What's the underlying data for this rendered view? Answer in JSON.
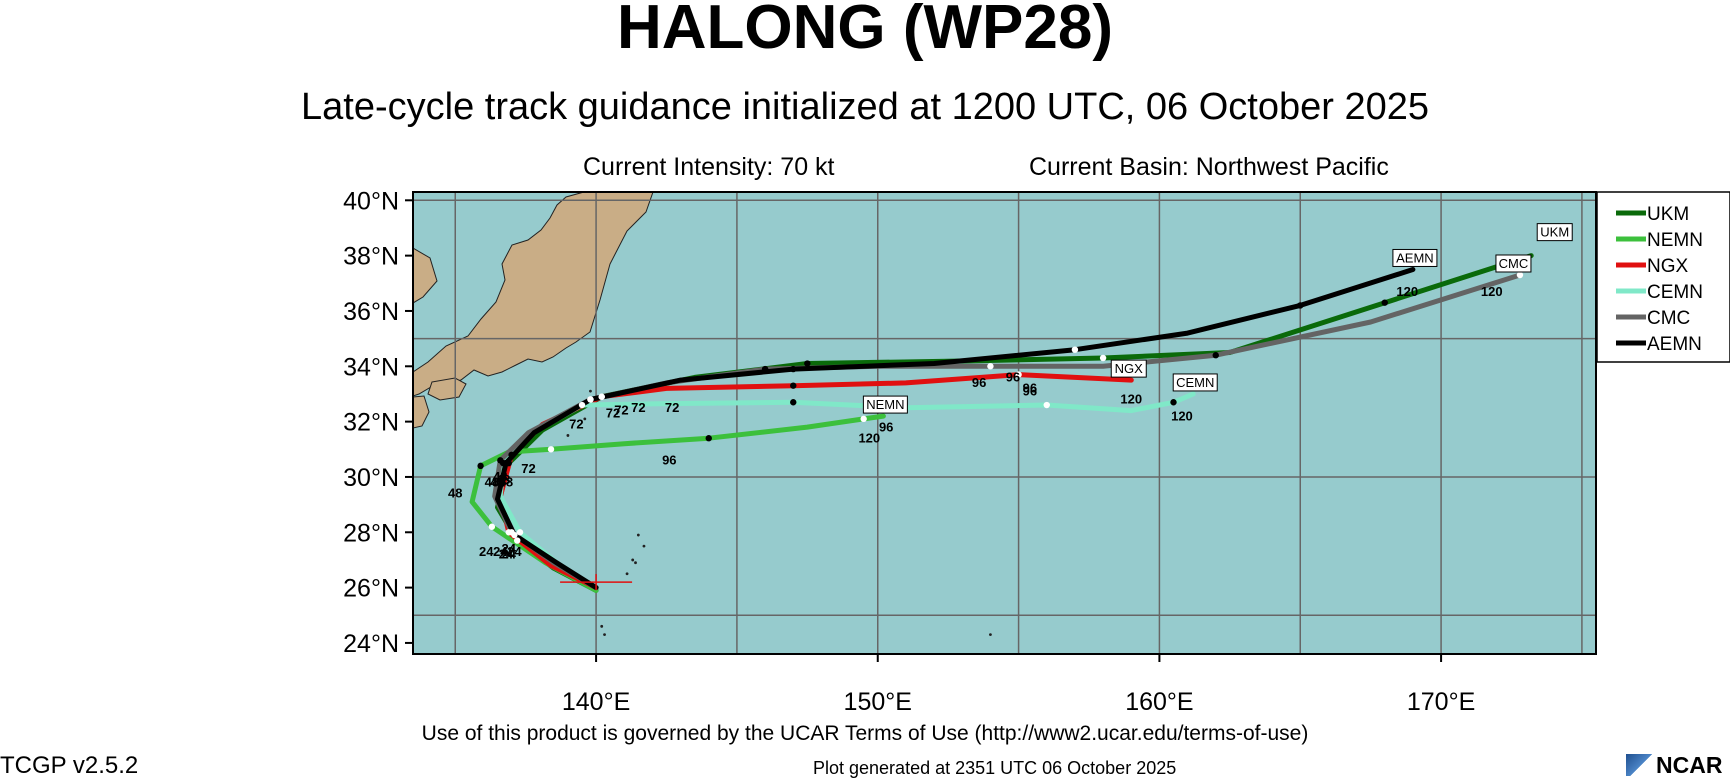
{
  "header": {
    "title": "HALONG (WP28)",
    "subtitle": "Late-cycle track guidance initialized at 1200 UTC, 06 October 2025",
    "intensity": "Current Intensity: 70 kt",
    "basin": "Current Basin: Northwest Pacific"
  },
  "footer": {
    "terms": "Use of this product is governed by the UCAR Terms of Use (http://www2.ucar.edu/terms-of-use)",
    "generated": "Plot generated at 2351 UTC   06 October 2025",
    "version": "TCGP v2.5.2",
    "logo_text": "NCAR"
  },
  "map": {
    "lon_range": [
      133.5,
      175.5
    ],
    "lat_range": [
      23.6,
      40.3
    ],
    "lon_ticks": [
      140,
      150,
      160,
      170
    ],
    "lon_tick_labels": [
      "140°E",
      "150°E",
      "160°E",
      "170°E"
    ],
    "lat_ticks": [
      24,
      26,
      28,
      30,
      32,
      34,
      36,
      38,
      40
    ],
    "lat_tick_labels": [
      "24°N",
      "26°N",
      "28°N",
      "30°N",
      "32°N",
      "34°N",
      "36°N",
      "38°N",
      "40°N"
    ],
    "grid_lons": [
      135,
      140,
      145,
      150,
      155,
      160,
      165,
      170,
      175
    ],
    "grid_lats": [
      25,
      30,
      35,
      40
    ],
    "ocean_color": "#96cbcd",
    "land_color": "#c9ad86",
    "current_position": {
      "lon": 140.0,
      "lat": 26.2
    }
  },
  "chart_data": {
    "type": "line",
    "legend_position": "right",
    "series": [
      {
        "name": "UKM",
        "color": "#0a6a0a",
        "points": [
          [
            140.0,
            25.9
          ],
          [
            138.5,
            26.7
          ],
          [
            137.2,
            27.7
          ],
          [
            136.5,
            28.9
          ],
          [
            136.9,
            30.5
          ],
          [
            138.1,
            31.7
          ],
          [
            140.2,
            32.9
          ],
          [
            143.5,
            33.6
          ],
          [
            147.5,
            34.1
          ],
          [
            153.5,
            34.2
          ],
          [
            158,
            34.3
          ],
          [
            162.5,
            34.5
          ],
          [
            168,
            36.3
          ],
          [
            173.2,
            38.0
          ]
        ],
        "end_label": "UKM",
        "hour_labels": [
          [
            "24",
            [
              137.1,
              27.8
            ]
          ],
          [
            "48",
            [
              136.8,
              30.3
            ]
          ],
          [
            "72",
            [
              141.5,
              33.0
            ]
          ],
          [
            "96",
            [
              154.8,
              34.1
            ]
          ],
          [
            "120",
            [
              172.8,
              38.1
            ]
          ]
        ]
      },
      {
        "name": "NEMN",
        "color": "#3cc03c",
        "points": [
          [
            140.0,
            25.9
          ],
          [
            138.2,
            26.9
          ],
          [
            136.3,
            28.2
          ],
          [
            135.6,
            29.1
          ],
          [
            135.9,
            30.4
          ],
          [
            136.9,
            30.9
          ],
          [
            138.4,
            31.0
          ],
          [
            141,
            31.2
          ],
          [
            144,
            31.4
          ],
          [
            147.5,
            31.8
          ],
          [
            149.5,
            32.1
          ],
          [
            150.2,
            32.2
          ]
        ],
        "end_label": "NEMN",
        "hour_labels": [
          [
            "24",
            [
              136.1,
              27.8
            ]
          ],
          [
            "48",
            [
              135.0,
              29.9
            ]
          ],
          [
            "72",
            [
              137.6,
              30.8
            ]
          ],
          [
            "96",
            [
              142.6,
              31.1
            ]
          ],
          [
            "120",
            [
              149.7,
              31.9
            ]
          ]
        ]
      },
      {
        "name": "NGX",
        "color": "#e01010",
        "points": [
          [
            140.0,
            26.0
          ],
          [
            138.4,
            26.8
          ],
          [
            136.9,
            28.0
          ],
          [
            136.6,
            29.3
          ],
          [
            137.0,
            30.8
          ],
          [
            138.1,
            31.9
          ],
          [
            140.2,
            32.9
          ],
          [
            142.5,
            33.2
          ],
          [
            147,
            33.3
          ],
          [
            151,
            33.4
          ],
          [
            155,
            33.7
          ],
          [
            159,
            33.5
          ]
        ],
        "end_label": "NGX",
        "hour_labels": [
          [
            "24",
            [
              136.6,
              27.8
            ]
          ],
          [
            "48",
            [
              136.7,
              30.4
            ]
          ],
          [
            "72",
            [
              142.7,
              33.0
            ]
          ],
          [
            "96",
            [
              155.4,
              33.6
            ]
          ],
          [
            "120",
            [
              159.0,
              33.3
            ]
          ]
        ]
      },
      {
        "name": "CEMN",
        "color": "#80e8c8",
        "points": [
          [
            140.0,
            26.0
          ],
          [
            138.6,
            26.9
          ],
          [
            137.3,
            28.0
          ],
          [
            136.6,
            29.3
          ],
          [
            136.7,
            30.5
          ],
          [
            137.6,
            31.5
          ],
          [
            139.5,
            32.6
          ],
          [
            142.5,
            32.65
          ],
          [
            147,
            32.7
          ],
          [
            151,
            32.5
          ],
          [
            156,
            32.6
          ],
          [
            159,
            32.4
          ],
          [
            160.5,
            32.7
          ],
          [
            161.2,
            33.0
          ]
        ],
        "end_label": "CEMN",
        "hour_labels": [
          [
            "24",
            [
              136.9,
              27.7
            ]
          ],
          [
            "48",
            [
              136.3,
              30.3
            ]
          ],
          [
            "72",
            [
              139.3,
              32.4
            ]
          ],
          [
            "96",
            [
              150.3,
              32.3
            ]
          ],
          [
            "120",
            [
              160.8,
              32.7
            ]
          ]
        ]
      },
      {
        "name": "CMC",
        "color": "#646464",
        "points": [
          [
            140.0,
            26.0
          ],
          [
            138.5,
            26.9
          ],
          [
            137.0,
            28.0
          ],
          [
            136.4,
            29.3
          ],
          [
            136.6,
            30.6
          ],
          [
            137.6,
            31.6
          ],
          [
            139.8,
            32.8
          ],
          [
            142.5,
            33.4
          ],
          [
            146,
            33.9
          ],
          [
            150,
            34.0
          ],
          [
            154,
            34.0
          ],
          [
            158,
            34.0
          ],
          [
            162,
            34.4
          ],
          [
            167.5,
            35.6
          ],
          [
            172.8,
            37.3
          ]
        ],
        "end_label": "CMC",
        "hour_labels": [
          [
            "24",
            [
              136.8,
              27.7
            ]
          ],
          [
            "48",
            [
              136.5,
              30.3
            ]
          ],
          [
            "72",
            [
              140.6,
              32.8
            ]
          ],
          [
            "96",
            [
              153.6,
              33.9
            ]
          ],
          [
            "120",
            [
              171.8,
              37.2
            ]
          ]
        ]
      },
      {
        "name": "AEMN",
        "color": "#000000",
        "points": [
          [
            140.0,
            26.0
          ],
          [
            138.6,
            26.9
          ],
          [
            137.1,
            27.9
          ],
          [
            136.5,
            29.2
          ],
          [
            136.8,
            30.5
          ],
          [
            137.8,
            31.6
          ],
          [
            139.8,
            32.8
          ],
          [
            143,
            33.5
          ],
          [
            147,
            33.9
          ],
          [
            152,
            34.1
          ],
          [
            157,
            34.6
          ],
          [
            161,
            35.2
          ],
          [
            165,
            36.2
          ],
          [
            169,
            37.5
          ]
        ],
        "end_label": "AEMN",
        "hour_labels": [
          [
            "24",
            [
              136.9,
              27.9
            ]
          ],
          [
            "48",
            [
              136.6,
              30.5
            ]
          ],
          [
            "72",
            [
              140.9,
              32.9
            ]
          ],
          [
            "96",
            [
              155.4,
              33.7
            ]
          ],
          [
            "120",
            [
              168.8,
              37.2
            ]
          ]
        ]
      }
    ]
  }
}
